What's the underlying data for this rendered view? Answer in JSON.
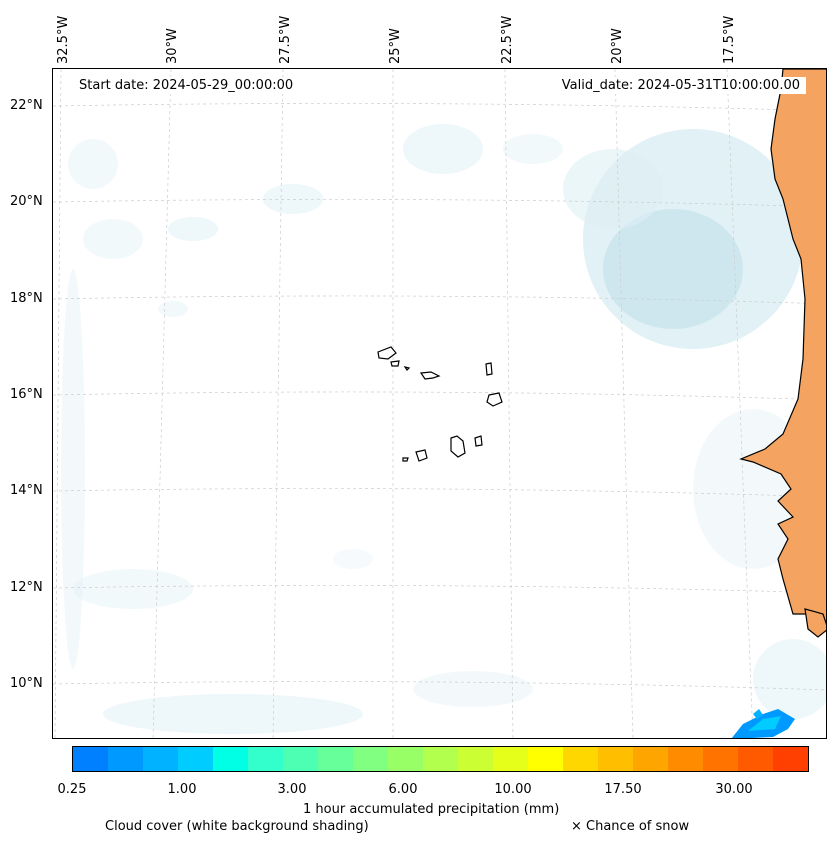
{
  "map": {
    "start_date": "Start date: 2024-05-29_00:00:00",
    "valid_date": "Valid_date: 2024-05-31T10:00:00.00",
    "lon_labels": [
      "32.5°W",
      "30°W",
      "27.5°W",
      "25°W",
      "22.5°W",
      "20°W",
      "17.5°W"
    ],
    "lat_labels": [
      "22°N",
      "20°N",
      "18°N",
      "16°N",
      "14°N",
      "12°N",
      "10°N"
    ],
    "land_color": "#f4a460",
    "ocean_color": "#ffffff",
    "cloud_color": "#cfe8f0"
  },
  "colorbar": {
    "ticks": [
      "0.25",
      "1.00",
      "3.00",
      "6.00",
      "10.00",
      "17.50",
      "30.00"
    ],
    "colors": [
      "#0080ff",
      "#0099ff",
      "#00b2ff",
      "#00ccff",
      "#00ffe5",
      "#33ffcc",
      "#4dffb2",
      "#66ff99",
      "#80ff80",
      "#99ff66",
      "#b2ff4d",
      "#ccff33",
      "#e5ff1a",
      "#ffff00",
      "#ffd700",
      "#ffbf00",
      "#ffa500",
      "#ff8c00",
      "#ff7300",
      "#ff5a00",
      "#ff4000"
    ],
    "title": "1 hour accumulated precipitation (mm)"
  },
  "legend": {
    "cloud": "Cloud cover (white background shading)",
    "snow": "× Chance of snow"
  }
}
